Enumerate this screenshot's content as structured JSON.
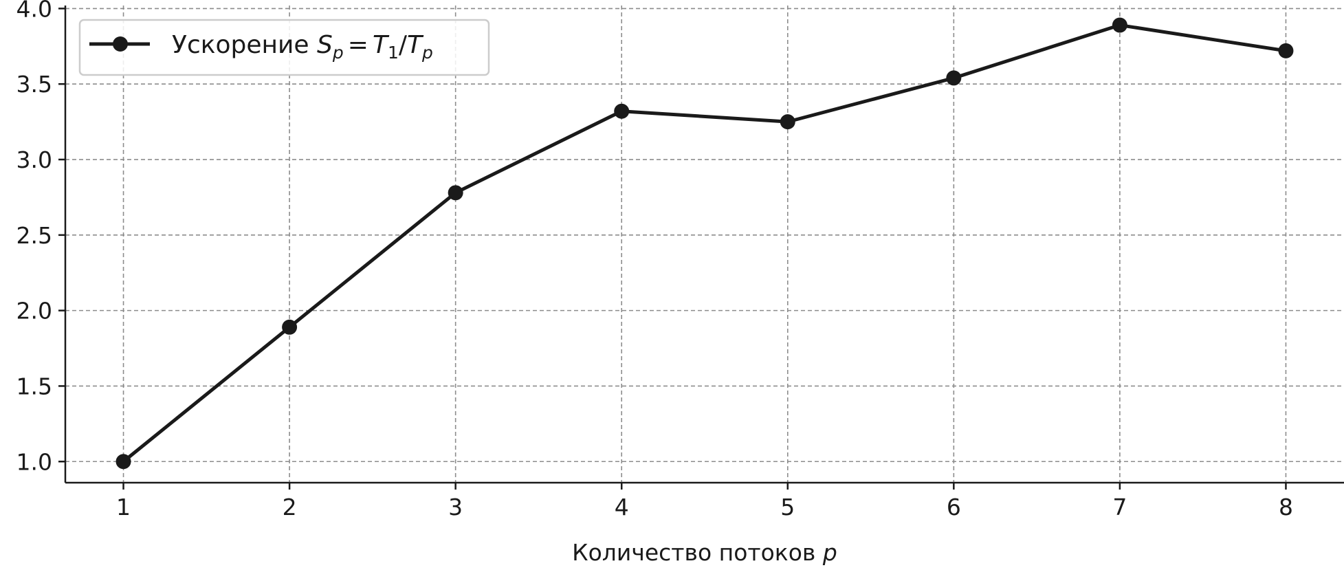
{
  "chart_data": {
    "type": "line",
    "title": "",
    "xlabel": "Количество потоков",
    "xlabel_var": "p",
    "ylabel": "",
    "x": [
      1,
      2,
      3,
      4,
      5,
      6,
      7,
      8
    ],
    "xlim": [
      0.65,
      8.35
    ],
    "ylim": [
      0.86,
      4.02
    ],
    "xticks": [
      1,
      2,
      3,
      4,
      5,
      6,
      7,
      8
    ],
    "yticks": [
      1.0,
      1.5,
      2.0,
      2.5,
      3.0,
      3.5,
      4.0
    ],
    "xtick_labels": [
      "1",
      "2",
      "3",
      "4",
      "5",
      "6",
      "7",
      "8"
    ],
    "ytick_labels": [
      "1.0",
      "1.5",
      "2.0",
      "2.5",
      "3.0",
      "3.5",
      "4.0"
    ],
    "grid": true,
    "legend_position": "upper left",
    "series": [
      {
        "name": "Ускорение S_p = T_1/T_p",
        "values": [
          1.0,
          1.89,
          2.78,
          3.32,
          3.25,
          3.54,
          3.89,
          3.72
        ],
        "color": "#1a1a1a",
        "marker": "circle"
      }
    ],
    "legend": {
      "text": "Ускорение",
      "s": "S",
      "sub_p": "p",
      "eq": "=",
      "t": "T",
      "sub_1": "1",
      "slash": "/"
    }
  }
}
